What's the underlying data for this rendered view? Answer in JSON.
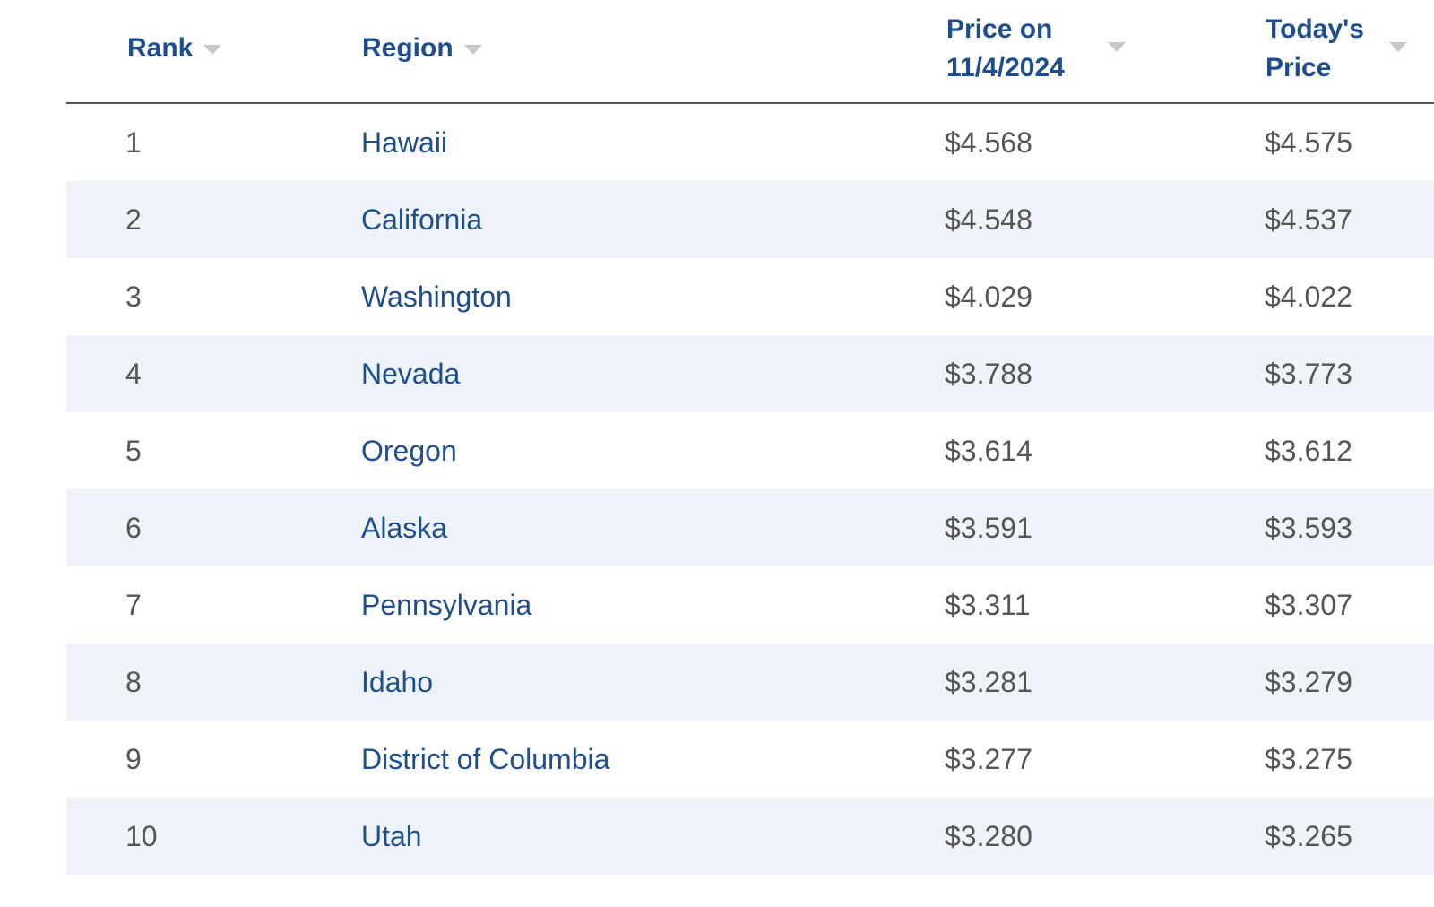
{
  "table": {
    "columns": {
      "rank": "Rank",
      "region": "Region",
      "price_then_line1": "Price on",
      "price_then_line2": "11/4/2024",
      "price_now_line1": "Today's",
      "price_now_line2": "Price"
    },
    "sort_icon": "chevron-down-icon",
    "rows": [
      {
        "rank": "1",
        "region": "Hawaii",
        "price_then": "$4.568",
        "price_now": "$4.575"
      },
      {
        "rank": "2",
        "region": "California",
        "price_then": "$4.548",
        "price_now": "$4.537"
      },
      {
        "rank": "3",
        "region": "Washington",
        "price_then": "$4.029",
        "price_now": "$4.022"
      },
      {
        "rank": "4",
        "region": "Nevada",
        "price_then": "$3.788",
        "price_now": "$3.773"
      },
      {
        "rank": "5",
        "region": "Oregon",
        "price_then": "$3.614",
        "price_now": "$3.612"
      },
      {
        "rank": "6",
        "region": "Alaska",
        "price_then": "$3.591",
        "price_now": "$3.593"
      },
      {
        "rank": "7",
        "region": "Pennsylvania",
        "price_then": "$3.311",
        "price_now": "$3.307"
      },
      {
        "rank": "8",
        "region": "Idaho",
        "price_then": "$3.281",
        "price_now": "$3.279"
      },
      {
        "rank": "9",
        "region": "District of Columbia",
        "price_then": "$3.277",
        "price_now": "$3.275"
      },
      {
        "rank": "10",
        "region": "Utah",
        "price_then": "$3.280",
        "price_now": "$3.265"
      }
    ],
    "colors": {
      "header_text": "#1f4e8c",
      "link_text": "#1f4e8c",
      "body_text": "#555555",
      "alt_row": "#eef3f9",
      "sort_icon": "#c8c8c8"
    }
  }
}
